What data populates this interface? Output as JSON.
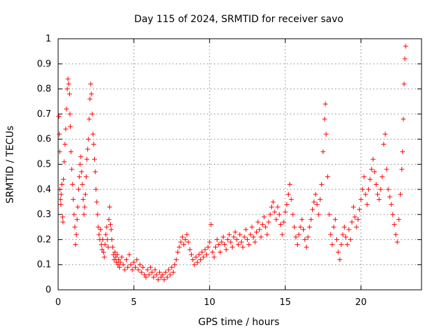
{
  "chart_data": {
    "type": "scatter",
    "title": "Day 115 of 2024, SRMTID for receiver savo",
    "xlabel": "GPS time / hours",
    "ylabel": "SRMTID / TECUs",
    "xlim": [
      0,
      24
    ],
    "ylim": [
      0,
      1
    ],
    "x_ticks": [
      0,
      5,
      10,
      15,
      20
    ],
    "x_tick_labels": [
      "0",
      "5",
      "10",
      "15",
      "20"
    ],
    "y_ticks": [
      0,
      0.1,
      0.2,
      0.3,
      0.4,
      0.5,
      0.6,
      0.7,
      0.8,
      0.9,
      1
    ],
    "y_tick_labels": [
      "0",
      "0.1",
      "0.2",
      "0.3",
      "0.4",
      "0.5",
      "0.6",
      "0.7",
      "0.8",
      "0.9",
      "1"
    ],
    "grid": true,
    "marker": "+",
    "color": "#ff0000",
    "series": [
      {
        "name": "savo",
        "points": [
          [
            0.05,
            0.69
          ],
          [
            0.08,
            0.62
          ],
          [
            0.1,
            0.55
          ],
          [
            0.12,
            0.4
          ],
          [
            0.15,
            0.36
          ],
          [
            0.18,
            0.34
          ],
          [
            0.2,
            0.38
          ],
          [
            0.25,
            0.42
          ],
          [
            0.3,
            0.29
          ],
          [
            0.32,
            0.27
          ],
          [
            0.35,
            0.44
          ],
          [
            0.4,
            0.51
          ],
          [
            0.45,
            0.58
          ],
          [
            0.5,
            0.64
          ],
          [
            0.55,
            0.72
          ],
          [
            0.6,
            0.8
          ],
          [
            0.65,
            0.84
          ],
          [
            0.7,
            0.82
          ],
          [
            0.75,
            0.78
          ],
          [
            0.78,
            0.7
          ],
          [
            0.8,
            0.65
          ],
          [
            0.85,
            0.55
          ],
          [
            0.9,
            0.48
          ],
          [
            0.95,
            0.42
          ],
          [
            1.0,
            0.36
          ],
          [
            1.05,
            0.3
          ],
          [
            1.1,
            0.25
          ],
          [
            1.15,
            0.18
          ],
          [
            1.2,
            0.22
          ],
          [
            1.25,
            0.28
          ],
          [
            1.3,
            0.33
          ],
          [
            1.35,
            0.4
          ],
          [
            1.4,
            0.45
          ],
          [
            1.45,
            0.5
          ],
          [
            1.5,
            0.53
          ],
          [
            1.55,
            0.47
          ],
          [
            1.6,
            0.42
          ],
          [
            1.65,
            0.36
          ],
          [
            1.7,
            0.3
          ],
          [
            1.75,
            0.33
          ],
          [
            1.8,
            0.38
          ],
          [
            1.85,
            0.45
          ],
          [
            1.9,
            0.52
          ],
          [
            1.95,
            0.56
          ],
          [
            2.0,
            0.6
          ],
          [
            2.05,
            0.68
          ],
          [
            2.1,
            0.76
          ],
          [
            2.15,
            0.82
          ],
          [
            2.2,
            0.78
          ],
          [
            2.25,
            0.7
          ],
          [
            2.3,
            0.62
          ],
          [
            2.35,
            0.58
          ],
          [
            2.4,
            0.52
          ],
          [
            2.45,
            0.47
          ],
          [
            2.5,
            0.4
          ],
          [
            2.55,
            0.35
          ],
          [
            2.6,
            0.3
          ],
          [
            2.65,
            0.25
          ],
          [
            2.7,
            0.22
          ],
          [
            2.75,
            0.2
          ],
          [
            2.8,
            0.24
          ],
          [
            2.85,
            0.18
          ],
          [
            2.9,
            0.16
          ],
          [
            2.95,
            0.2
          ],
          [
            3.0,
            0.15
          ],
          [
            3.05,
            0.13
          ],
          [
            3.1,
            0.18
          ],
          [
            3.15,
            0.22
          ],
          [
            3.2,
            0.25
          ],
          [
            3.25,
            0.2
          ],
          [
            3.3,
            0.17
          ],
          [
            3.35,
            0.28
          ],
          [
            3.4,
            0.33
          ],
          [
            3.45,
            0.26
          ],
          [
            3.5,
            0.24
          ],
          [
            3.55,
            0.2
          ],
          [
            3.6,
            0.17
          ],
          [
            3.65,
            0.14
          ],
          [
            3.7,
            0.12
          ],
          [
            3.75,
            0.15
          ],
          [
            3.8,
            0.13
          ],
          [
            3.85,
            0.11
          ],
          [
            3.9,
            0.14
          ],
          [
            3.95,
            0.1
          ],
          [
            4.0,
            0.12
          ],
          [
            4.05,
            0.09
          ],
          [
            4.1,
            0.11
          ],
          [
            4.2,
            0.13
          ],
          [
            4.3,
            0.1
          ],
          [
            4.4,
            0.08
          ],
          [
            4.5,
            0.12
          ],
          [
            4.6,
            0.09
          ],
          [
            4.7,
            0.14
          ],
          [
            4.8,
            0.1
          ],
          [
            4.9,
            0.08
          ],
          [
            5.0,
            0.11
          ],
          [
            5.1,
            0.09
          ],
          [
            5.2,
            0.12
          ],
          [
            5.3,
            0.08
          ],
          [
            5.4,
            0.1
          ],
          [
            5.5,
            0.07
          ],
          [
            5.6,
            0.09
          ],
          [
            5.7,
            0.06
          ],
          [
            5.8,
            0.05
          ],
          [
            5.9,
            0.08
          ],
          [
            6.0,
            0.06
          ],
          [
            6.1,
            0.09
          ],
          [
            6.2,
            0.07
          ],
          [
            6.3,
            0.05
          ],
          [
            6.4,
            0.08
          ],
          [
            6.5,
            0.06
          ],
          [
            6.6,
            0.04
          ],
          [
            6.7,
            0.07
          ],
          [
            6.8,
            0.05
          ],
          [
            6.9,
            0.06
          ],
          [
            7.0,
            0.04
          ],
          [
            7.1,
            0.07
          ],
          [
            7.2,
            0.05
          ],
          [
            7.3,
            0.08
          ],
          [
            7.4,
            0.06
          ],
          [
            7.5,
            0.09
          ],
          [
            7.6,
            0.07
          ],
          [
            7.7,
            0.1
          ],
          [
            7.8,
            0.12
          ],
          [
            7.9,
            0.15
          ],
          [
            8.0,
            0.17
          ],
          [
            8.1,
            0.19
          ],
          [
            8.2,
            0.21
          ],
          [
            8.3,
            0.18
          ],
          [
            8.4,
            0.2
          ],
          [
            8.5,
            0.22
          ],
          [
            8.6,
            0.19
          ],
          [
            8.7,
            0.16
          ],
          [
            8.8,
            0.14
          ],
          [
            8.9,
            0.12
          ],
          [
            9.0,
            0.1
          ],
          [
            9.1,
            0.13
          ],
          [
            9.2,
            0.11
          ],
          [
            9.3,
            0.14
          ],
          [
            9.4,
            0.12
          ],
          [
            9.5,
            0.15
          ],
          [
            9.6,
            0.13
          ],
          [
            9.7,
            0.16
          ],
          [
            9.8,
            0.14
          ],
          [
            9.9,
            0.17
          ],
          [
            10.0,
            0.19
          ],
          [
            10.1,
            0.26
          ],
          [
            10.2,
            0.15
          ],
          [
            10.3,
            0.13
          ],
          [
            10.4,
            0.17
          ],
          [
            10.5,
            0.2
          ],
          [
            10.6,
            0.18
          ],
          [
            10.7,
            0.15
          ],
          [
            10.8,
            0.19
          ],
          [
            10.9,
            0.21
          ],
          [
            11.0,
            0.18
          ],
          [
            11.1,
            0.16
          ],
          [
            11.2,
            0.2
          ],
          [
            11.3,
            0.22
          ],
          [
            11.4,
            0.19
          ],
          [
            11.5,
            0.17
          ],
          [
            11.6,
            0.21
          ],
          [
            11.7,
            0.23
          ],
          [
            11.8,
            0.2
          ],
          [
            11.9,
            0.18
          ],
          [
            12.0,
            0.22
          ],
          [
            12.1,
            0.19
          ],
          [
            12.2,
            0.17
          ],
          [
            12.3,
            0.21
          ],
          [
            12.4,
            0.24
          ],
          [
            12.5,
            0.2
          ],
          [
            12.6,
            0.18
          ],
          [
            12.7,
            0.22
          ],
          [
            12.8,
            0.25
          ],
          [
            12.9,
            0.21
          ],
          [
            13.0,
            0.19
          ],
          [
            13.1,
            0.23
          ],
          [
            13.2,
            0.27
          ],
          [
            13.3,
            0.24
          ],
          [
            13.4,
            0.21
          ],
          [
            13.5,
            0.26
          ],
          [
            13.6,
            0.29
          ],
          [
            13.7,
            0.25
          ],
          [
            13.8,
            0.22
          ],
          [
            13.9,
            0.27
          ],
          [
            14.0,
            0.3
          ],
          [
            14.1,
            0.33
          ],
          [
            14.2,
            0.35
          ],
          [
            14.3,
            0.31
          ],
          [
            14.4,
            0.28
          ],
          [
            14.5,
            0.33
          ],
          [
            14.6,
            0.3
          ],
          [
            14.7,
            0.26
          ],
          [
            14.8,
            0.22
          ],
          [
            14.9,
            0.27
          ],
          [
            15.0,
            0.31
          ],
          [
            15.1,
            0.34
          ],
          [
            15.2,
            0.38
          ],
          [
            15.3,
            0.42
          ],
          [
            15.4,
            0.36
          ],
          [
            15.5,
            0.3
          ],
          [
            15.6,
            0.25
          ],
          [
            15.7,
            0.21
          ],
          [
            15.8,
            0.18
          ],
          [
            15.9,
            0.22
          ],
          [
            16.0,
            0.25
          ],
          [
            16.1,
            0.28
          ],
          [
            16.2,
            0.24
          ],
          [
            16.3,
            0.2
          ],
          [
            16.4,
            0.17
          ],
          [
            16.5,
            0.21
          ],
          [
            16.6,
            0.25
          ],
          [
            16.7,
            0.28
          ],
          [
            16.8,
            0.32
          ],
          [
            16.9,
            0.35
          ],
          [
            17.0,
            0.38
          ],
          [
            17.1,
            0.34
          ],
          [
            17.2,
            0.3
          ],
          [
            17.3,
            0.36
          ],
          [
            17.4,
            0.42
          ],
          [
            17.5,
            0.55
          ],
          [
            17.6,
            0.68
          ],
          [
            17.65,
            0.74
          ],
          [
            17.7,
            0.62
          ],
          [
            17.8,
            0.45
          ],
          [
            17.9,
            0.3
          ],
          [
            18.0,
            0.22
          ],
          [
            18.1,
            0.18
          ],
          [
            18.2,
            0.25
          ],
          [
            18.3,
            0.28
          ],
          [
            18.4,
            0.2
          ],
          [
            18.5,
            0.15
          ],
          [
            18.6,
            0.12
          ],
          [
            18.7,
            0.18
          ],
          [
            18.8,
            0.22
          ],
          [
            18.9,
            0.25
          ],
          [
            19.0,
            0.21
          ],
          [
            19.1,
            0.18
          ],
          [
            19.2,
            0.24
          ],
          [
            19.3,
            0.2
          ],
          [
            19.4,
            0.27
          ],
          [
            19.5,
            0.33
          ],
          [
            19.6,
            0.29
          ],
          [
            19.7,
            0.25
          ],
          [
            19.8,
            0.28
          ],
          [
            19.9,
            0.32
          ],
          [
            20.0,
            0.36
          ],
          [
            20.1,
            0.4
          ],
          [
            20.2,
            0.45
          ],
          [
            20.3,
            0.38
          ],
          [
            20.4,
            0.34
          ],
          [
            20.5,
            0.4
          ],
          [
            20.6,
            0.44
          ],
          [
            20.7,
            0.48
          ],
          [
            20.8,
            0.52
          ],
          [
            20.9,
            0.47
          ],
          [
            21.0,
            0.42
          ],
          [
            21.1,
            0.38
          ],
          [
            21.2,
            0.36
          ],
          [
            21.3,
            0.4
          ],
          [
            21.4,
            0.45
          ],
          [
            21.5,
            0.58
          ],
          [
            21.6,
            0.62
          ],
          [
            21.7,
            0.48
          ],
          [
            21.8,
            0.4
          ],
          [
            21.9,
            0.37
          ],
          [
            22.0,
            0.34
          ],
          [
            22.1,
            0.3
          ],
          [
            22.2,
            0.26
          ],
          [
            22.3,
            0.22
          ],
          [
            22.4,
            0.19
          ],
          [
            22.5,
            0.28
          ],
          [
            22.6,
            0.38
          ],
          [
            22.7,
            0.48
          ],
          [
            22.75,
            0.55
          ],
          [
            22.8,
            0.68
          ],
          [
            22.85,
            0.82
          ],
          [
            22.9,
            0.92
          ],
          [
            22.95,
            0.97
          ]
        ]
      }
    ]
  }
}
